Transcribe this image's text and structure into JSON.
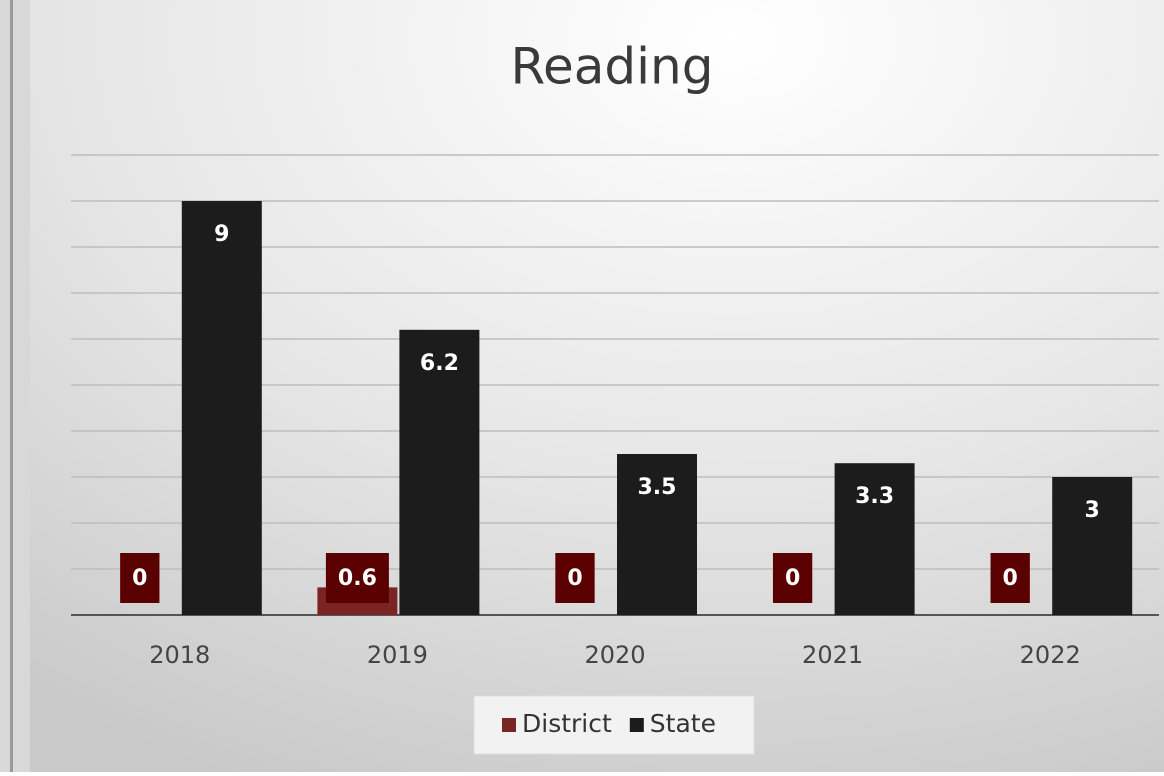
{
  "chart_data": {
    "type": "bar",
    "title": "Reading",
    "categories": [
      "2018",
      "2019",
      "2020",
      "2021",
      "2022"
    ],
    "series": [
      {
        "name": "District",
        "color": "#7a2424",
        "label_color": "#5a0000",
        "values": [
          0,
          0.6,
          0,
          0,
          0
        ]
      },
      {
        "name": "State",
        "color": "#1c1c1c",
        "label_color": "#1c1c1c",
        "values": [
          9,
          6.2,
          3.5,
          3.3,
          3
        ]
      }
    ],
    "ylim": [
      0,
      10
    ],
    "yticks": [
      0,
      1,
      2,
      3,
      4,
      5,
      6,
      7,
      8,
      9,
      10
    ],
    "ytick_labels": false,
    "grid": true,
    "legend": "bottom"
  }
}
